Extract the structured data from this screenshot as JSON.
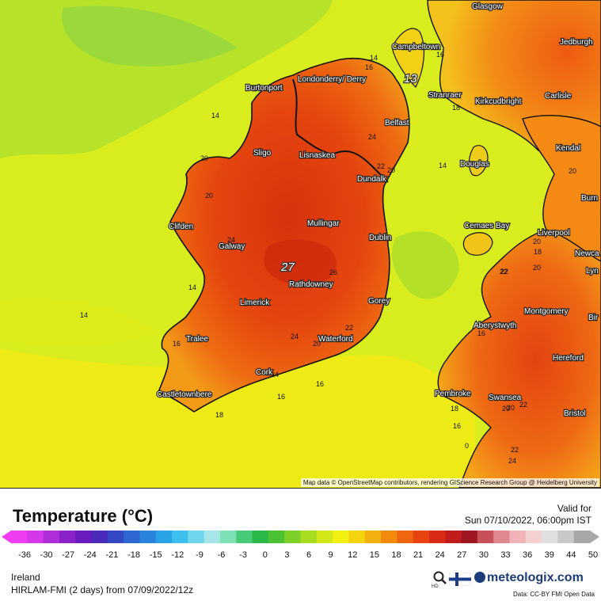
{
  "map": {
    "attribution": "Map data © OpenStreetMap contributors, rendering GIScience Research Group @ Heidelberg University",
    "big_values": [
      "27",
      "13"
    ],
    "cities": [
      {
        "name": "Glasgow"
      },
      {
        "name": "Campbeltown"
      },
      {
        "name": "Jedburgh"
      },
      {
        "name": "Burtonport"
      },
      {
        "name": "Londonderry/ Derry"
      },
      {
        "name": "Stranraer"
      },
      {
        "name": "Kirkcudbright"
      },
      {
        "name": "Carlisle"
      },
      {
        "name": "Belfast"
      },
      {
        "name": "Kendal"
      },
      {
        "name": "Sligo"
      },
      {
        "name": "Lisnaskea"
      },
      {
        "name": "Douglas"
      },
      {
        "name": "Dundalk"
      },
      {
        "name": "Burn"
      },
      {
        "name": "Clifden"
      },
      {
        "name": "Mullingar"
      },
      {
        "name": "Cemaes Bay"
      },
      {
        "name": "Liverpool"
      },
      {
        "name": "Dublin"
      },
      {
        "name": "Galway"
      },
      {
        "name": "Newca"
      },
      {
        "name": "Rathdowney"
      },
      {
        "name": "Lyn"
      },
      {
        "name": "Limerick"
      },
      {
        "name": "Gorey"
      },
      {
        "name": "Montgomery"
      },
      {
        "name": "Bir"
      },
      {
        "name": "Aberystwyth"
      },
      {
        "name": "Tralee"
      },
      {
        "name": "Waterford"
      },
      {
        "name": "Hereford"
      },
      {
        "name": "Cork"
      },
      {
        "name": "Castletownbere"
      },
      {
        "name": "Pembroke"
      },
      {
        "name": "Swansea"
      },
      {
        "name": "Bristol"
      }
    ],
    "isolines": [
      "14",
      "16",
      "16",
      "18",
      "20",
      "24",
      "22",
      "14",
      "20",
      "20",
      "24",
      "20",
      "14",
      "14",
      "20",
      "22",
      "20",
      "18",
      "24",
      "26",
      "14",
      "24",
      "22",
      "20",
      "16",
      "16",
      "16",
      "18",
      "20",
      "22",
      "22",
      "24",
      "16",
      "16",
      "22",
      "20",
      "0",
      "18"
    ]
  },
  "legend": {
    "title": "Temperature (°C)",
    "valid_label": "Valid for",
    "valid_date": "Sun 07/10/2022, 06:00pm IST",
    "ticks": [
      "-36",
      "-30",
      "-27",
      "-24",
      "-21",
      "-18",
      "-15",
      "-12",
      "-9",
      "-6",
      "-3",
      "0",
      "3",
      "6",
      "9",
      "12",
      "15",
      "18",
      "21",
      "24",
      "27",
      "30",
      "33",
      "36",
      "39",
      "44",
      "50"
    ],
    "region": "Ireland",
    "model": "HIRLAM-FMI (2 days) from 07/09/2022/12z",
    "brand": "meteologix.com",
    "data_source": "Data: CC-BY FMI Open Data",
    "colors": [
      "#f03cf0",
      "#d438e8",
      "#b02ed8",
      "#8a22c8",
      "#6a1cc0",
      "#4a2ab8",
      "#3448c4",
      "#2e66d2",
      "#2a84de",
      "#2aa2e6",
      "#3ec0ec",
      "#70d6ee",
      "#a6e6e8",
      "#7ee0b4",
      "#46cc78",
      "#2ab84a",
      "#4cc232",
      "#7cd028",
      "#a8dc20",
      "#d2e81a",
      "#f2f010",
      "#f4d40e",
      "#f4b00e",
      "#f28a0e",
      "#ee6610",
      "#e84412",
      "#d82a14",
      "#c01c1c",
      "#a01620",
      "#c8505a",
      "#e08890",
      "#f0b4b8",
      "#f4d0d0",
      "#e0e0e0",
      "#c8c8c8",
      "#a8a8a8"
    ]
  }
}
